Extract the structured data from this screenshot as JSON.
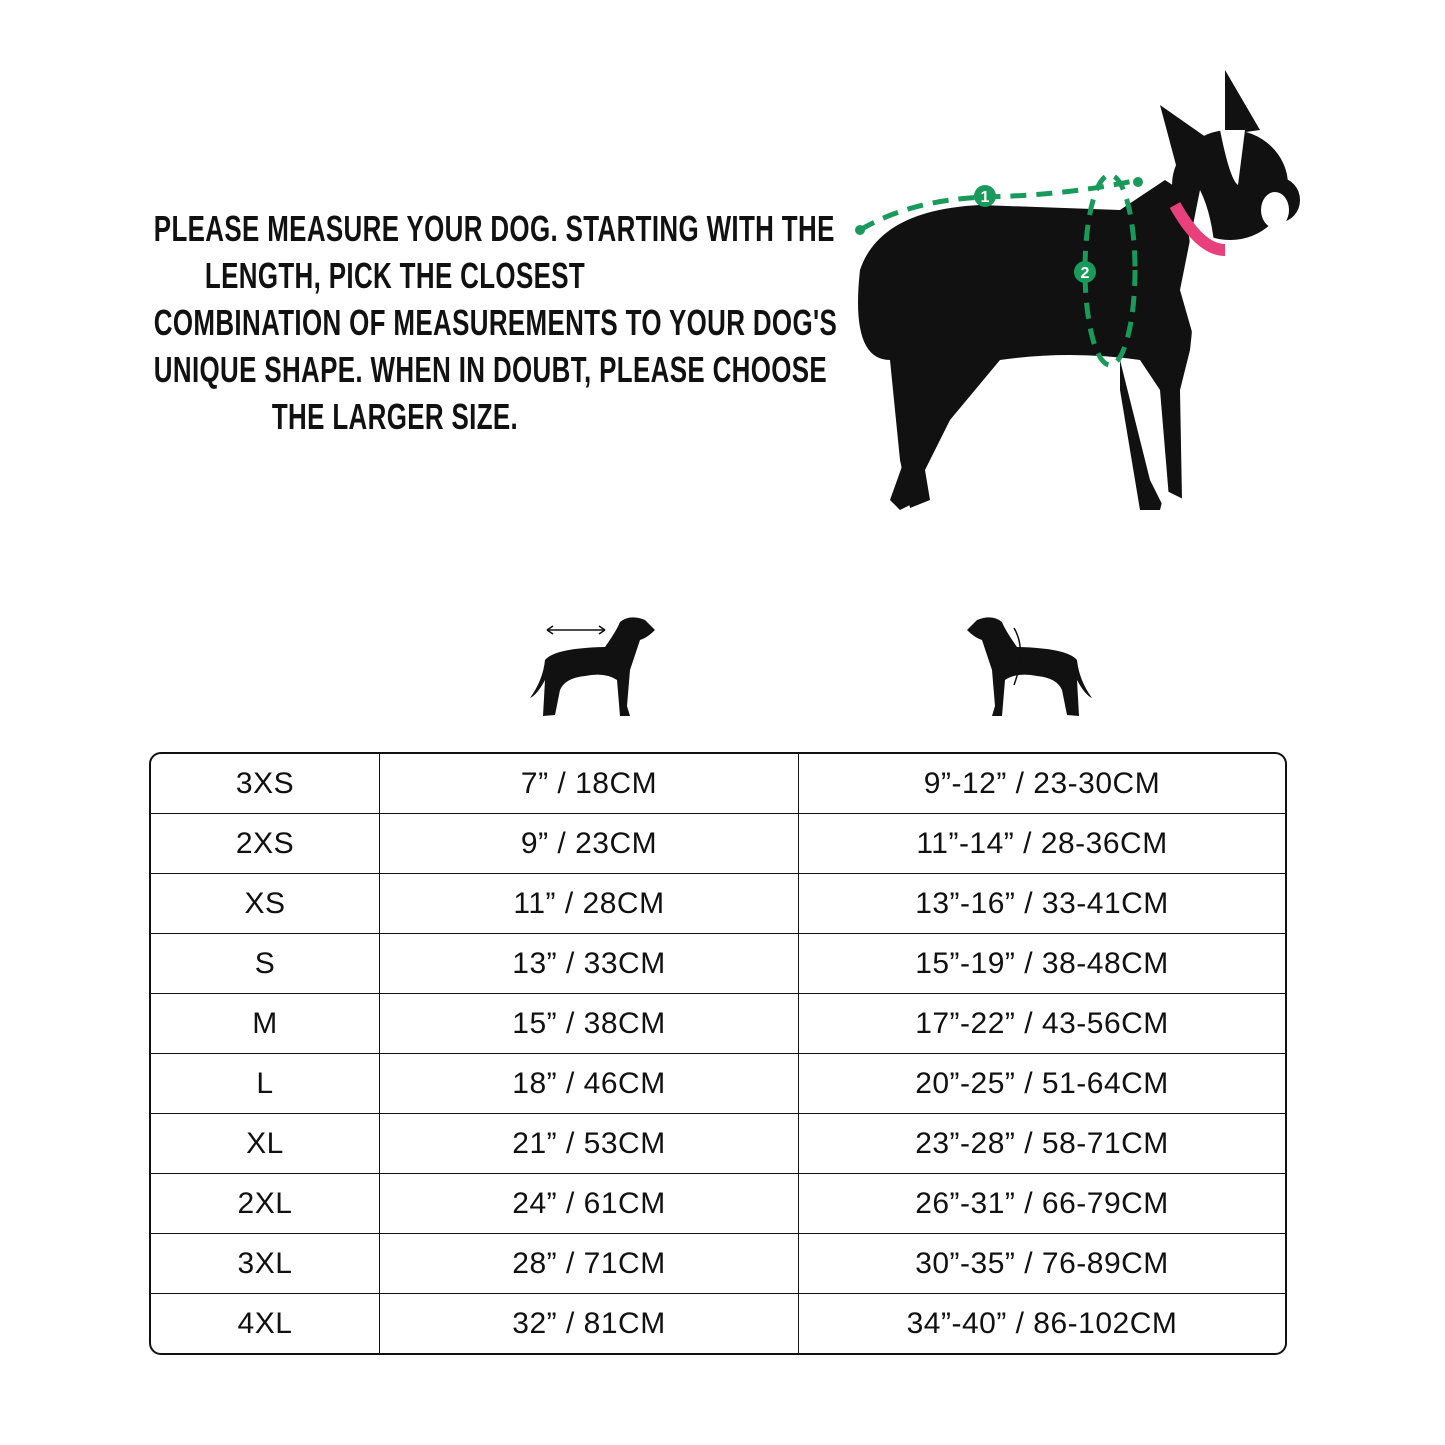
{
  "instructions": {
    "lines": [
      "PLEASE MEASURE YOUR DOG. STARTING WITH THE",
      "LENGTH, PICK THE CLOSEST",
      "COMBINATION OF MEASUREMENTS TO YOUR DOG'S",
      "UNIQUE SHAPE. WHEN IN DOUBT, PLEASE CHOOSE",
      "THE LARGER SIZE."
    ]
  },
  "photo": {
    "marker_1": "1",
    "marker_2": "2",
    "accent_color": "#1a9a5a",
    "collar_color": "#e8407a"
  },
  "column_icons": [
    "dog-length-icon",
    "dog-girth-icon"
  ],
  "size_table": {
    "rows": [
      {
        "size": "3XS",
        "length": "7” / 18CM",
        "girth": "9”-12” / 23-30CM"
      },
      {
        "size": "2XS",
        "length": "9” / 23CM",
        "girth": "11”-14” / 28-36CM"
      },
      {
        "size": "XS",
        "length": "11” / 28CM",
        "girth": "13”-16” / 33-41CM"
      },
      {
        "size": "S",
        "length": "13” / 33CM",
        "girth": "15”-19” / 38-48CM"
      },
      {
        "size": "M",
        "length": "15” / 38CM",
        "girth": "17”-22” / 43-56CM"
      },
      {
        "size": "L",
        "length": "18” / 46CM",
        "girth": "20”-25” / 51-64CM"
      },
      {
        "size": "XL",
        "length": "21” / 53CM",
        "girth": "23”-28” / 58-71CM"
      },
      {
        "size": "2XL",
        "length": "24” / 61CM",
        "girth": "26”-31” / 66-79CM"
      },
      {
        "size": "3XL",
        "length": "28” / 71CM",
        "girth": "30”-35” / 76-89CM"
      },
      {
        "size": "4XL",
        "length": "32” / 81CM",
        "girth": "34”-40” / 86-102CM"
      }
    ]
  }
}
